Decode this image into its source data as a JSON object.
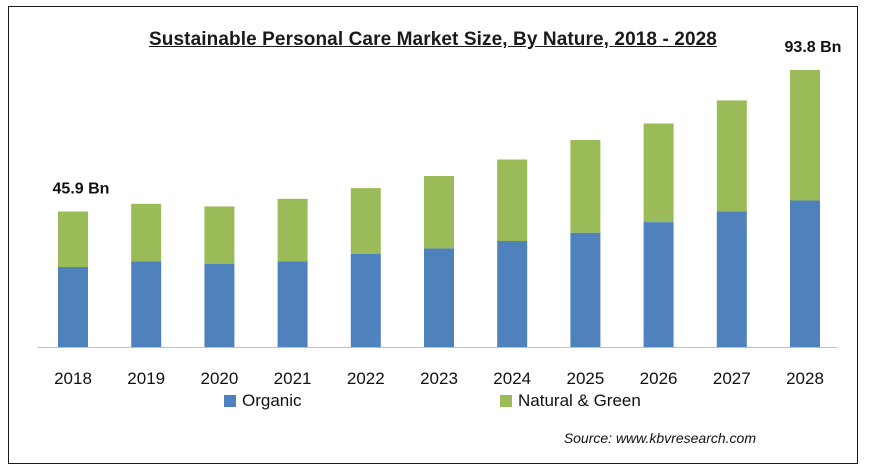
{
  "chart_data": {
    "type": "bar",
    "stacked": true,
    "title": "Sustainable Personal Care Market Size, By Nature, 2018 - 2028",
    "categories": [
      "2018",
      "2019",
      "2020",
      "2021",
      "2022",
      "2023",
      "2024",
      "2025",
      "2026",
      "2027",
      "2028"
    ],
    "series": [
      {
        "name": "Organic",
        "color": "#4f81bd",
        "values": [
          27.1,
          29.0,
          28.1,
          29.0,
          31.5,
          33.4,
          35.9,
          38.7,
          42.3,
          45.9,
          49.6
        ]
      },
      {
        "name": "Natural & Green",
        "color": "#9bbb59",
        "values": [
          18.8,
          19.5,
          19.5,
          21.2,
          22.3,
          24.5,
          27.6,
          31.4,
          33.4,
          37.6,
          44.2
        ]
      }
    ],
    "data_labels": [
      {
        "category": "2018",
        "text": "45.9 Bn"
      },
      {
        "category": "2028",
        "text": "93.8 Bn"
      }
    ],
    "ylim": [
      0,
      100
    ],
    "xlabel": "",
    "ylabel": "",
    "legend": "bottom",
    "grid": false
  },
  "source": "Source:  www.kbvresearch.com"
}
